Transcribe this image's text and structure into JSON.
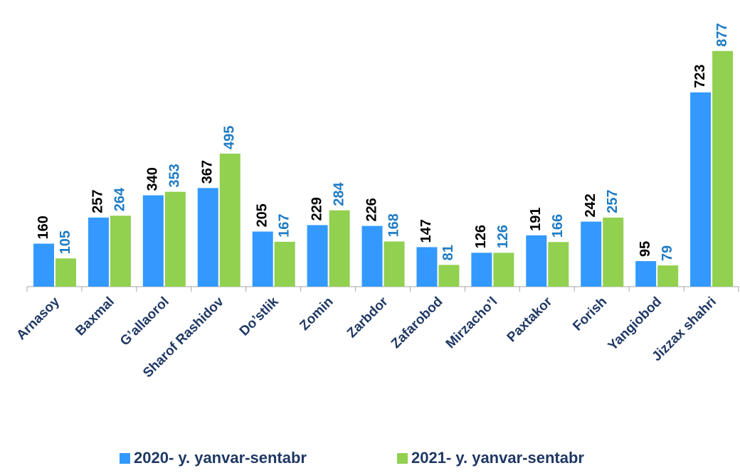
{
  "chart_data": {
    "type": "bar",
    "categories": [
      "Arnasoy",
      "Baxmal",
      "G’allaorol",
      "Sharof Rashidov",
      "Do’stlik",
      "Zomin",
      "Zarbdor",
      "Zafarobod",
      "Mirzacho’l",
      "Paxtakor",
      "Forish",
      "Yangiobod",
      "Jizzax shahri"
    ],
    "series": [
      {
        "name": "2020- y. yanvar-sentabr",
        "color": "#3399ff",
        "label_color": "#000000",
        "values": [
          160,
          257,
          340,
          367,
          205,
          229,
          226,
          147,
          126,
          191,
          242,
          95,
          723
        ]
      },
      {
        "name": "2021- y. yanvar-sentabr",
        "color": "#92d050",
        "label_color": "#1f7bc4",
        "values": [
          105,
          264,
          353,
          495,
          167,
          284,
          168,
          81,
          126,
          166,
          257,
          79,
          877
        ]
      }
    ],
    "ylim": [
      0,
      900
    ],
    "legend": "bottom"
  }
}
